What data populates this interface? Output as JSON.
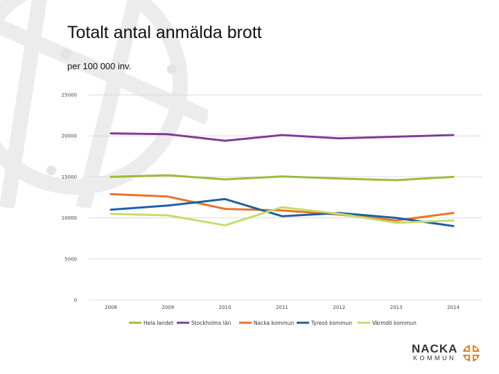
{
  "title": "Totalt antal anmälda brott",
  "subtitle": "per 100 000 inv.",
  "colors": {
    "background_pattern": "#ececec",
    "grid": "#d9d9d9",
    "logo_accent": "#e8832a"
  },
  "logo": {
    "line1": "NACKA",
    "line2": "KOMMUN",
    "icon": "compass-cross-icon"
  },
  "chart_data": {
    "type": "line",
    "title": "",
    "xlabel": "",
    "ylabel": "",
    "categories": [
      "2008",
      "2009",
      "2010",
      "2011",
      "2012",
      "2013",
      "2014"
    ],
    "ylim": [
      0,
      25000
    ],
    "yticks": [
      "0",
      "5000",
      "10000",
      "15000",
      "20000",
      "25000"
    ],
    "grid": true,
    "legend_position": "bottom",
    "series": [
      {
        "name": "Hela landet",
        "color": "#9bbb3a",
        "values": [
          15000,
          15200,
          14700,
          15050,
          14800,
          14600,
          15000
        ]
      },
      {
        "name": "Stockholms län",
        "color": "#7d3c98",
        "values": [
          20300,
          20200,
          19400,
          20100,
          19700,
          19900,
          20100
        ]
      },
      {
        "name": "Nacka kommun",
        "color": "#e8732a",
        "values": [
          12900,
          12600,
          11100,
          10900,
          10400,
          9700,
          10600
        ]
      },
      {
        "name": "Tyresö kommun",
        "color": "#1f5fa0",
        "values": [
          11000,
          11500,
          12300,
          10200,
          10600,
          10000,
          9000
        ]
      },
      {
        "name": "Värmdö kommun",
        "color": "#c5dc6b",
        "values": [
          10500,
          10300,
          9100,
          11300,
          10500,
          9400,
          9700
        ]
      }
    ]
  }
}
